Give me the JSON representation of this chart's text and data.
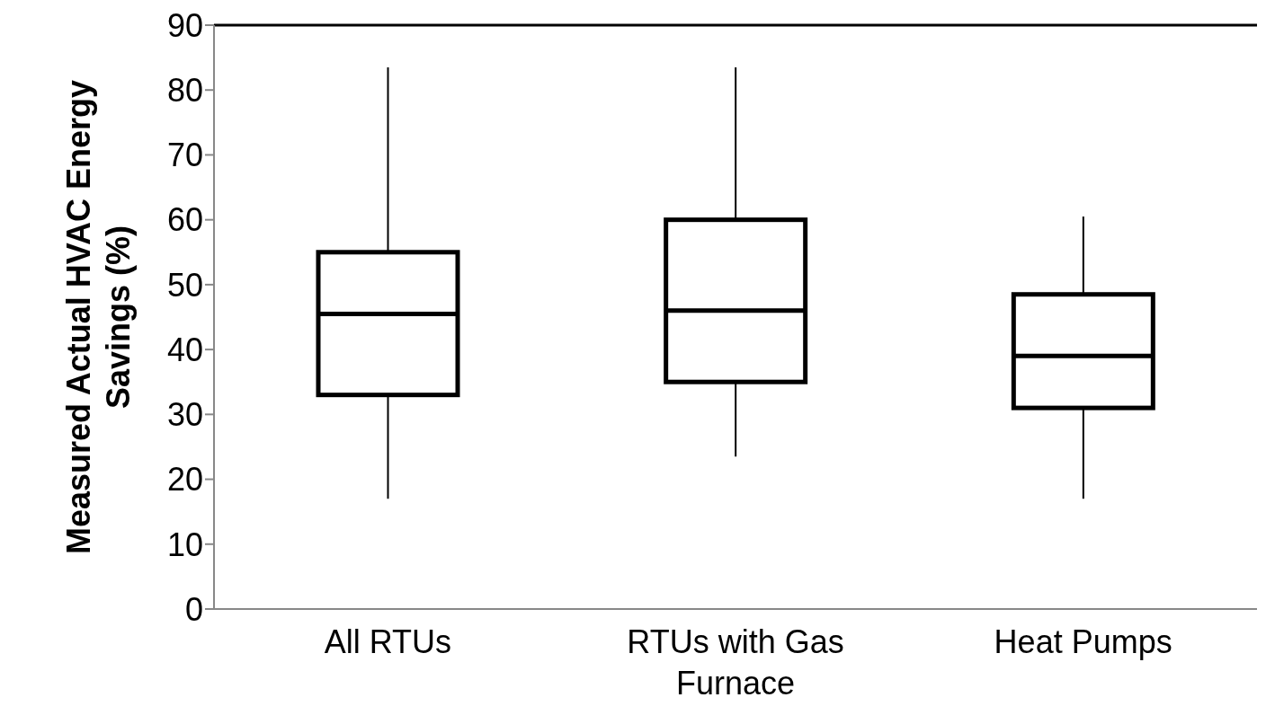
{
  "chart_data": {
    "type": "box",
    "ylabel": "Measured Actual HVAC Energy Savings (%)",
    "categories": [
      "All RTUs",
      "RTUs with Gas Furnace",
      "Heat Pumps"
    ],
    "boxes": [
      {
        "low": 17,
        "q1": 33,
        "median": 45.5,
        "q3": 55,
        "high": 83.5
      },
      {
        "low": 23.5,
        "q1": 35,
        "median": 46,
        "q3": 60,
        "high": 83.5
      },
      {
        "low": 17,
        "q1": 31,
        "median": 39,
        "q3": 48.5,
        "high": 60.5
      }
    ],
    "color": "#000000",
    "ylim": [
      0,
      90
    ],
    "yticks": [
      0,
      10,
      20,
      30,
      40,
      50,
      60,
      70,
      80,
      90
    ]
  }
}
